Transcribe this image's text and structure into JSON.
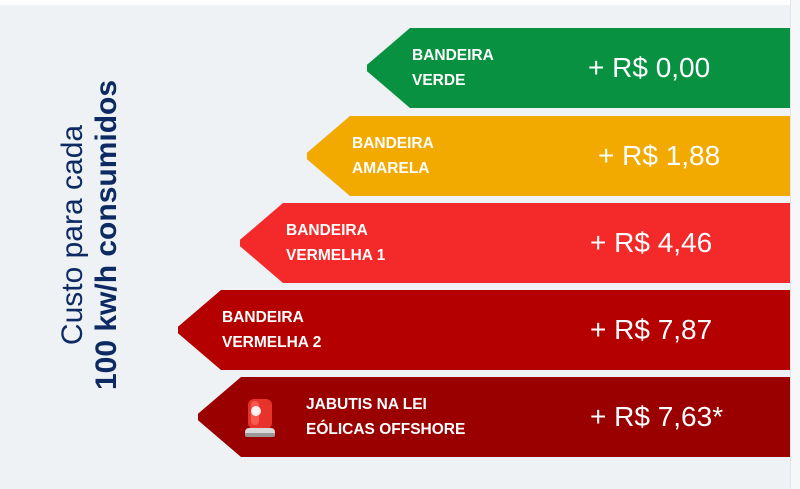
{
  "side_label": {
    "line1": "Custo para cada",
    "line2": "100 kw/h consumidos"
  },
  "bars": [
    {
      "label_line1": "BANDEIRA",
      "label_line2": "VERDE",
      "value": "+ R$ 0,00",
      "color": "#079140"
    },
    {
      "label_line1": "BANDEIRA",
      "label_line2": "AMARELA",
      "value": "+ R$ 1,88",
      "color": "#f2a900"
    },
    {
      "label_line1": "BANDEIRA",
      "label_line2": "VERMELHA 1",
      "value": "+ R$ 4,46",
      "color": "#f42a2a"
    },
    {
      "label_line1": "BANDEIRA",
      "label_line2": "VERMELHA 2",
      "value": "+ R$ 7,87",
      "color": "#b50000"
    },
    {
      "label_line1": "JABUTIS NA LEI",
      "label_line2": "EÓLICAS OFFSHORE",
      "value": "+ R$ 7,63*",
      "color": "#9a0000",
      "icon": "siren-icon"
    }
  ],
  "text_color": "#0d2a63"
}
